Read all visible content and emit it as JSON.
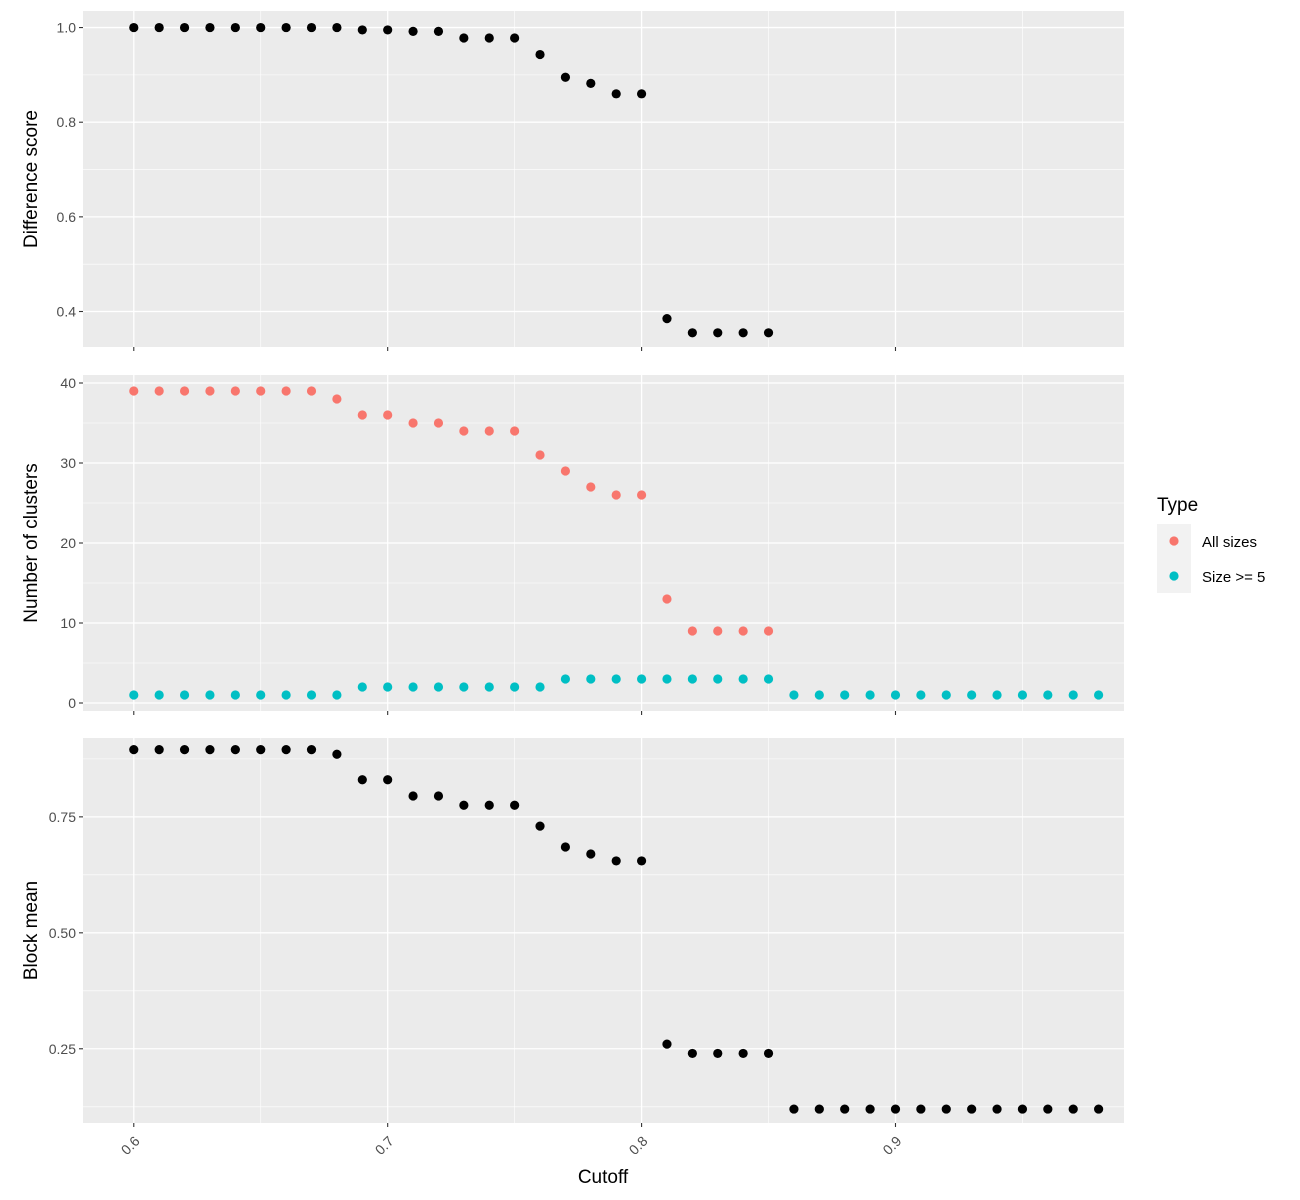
{
  "chart_data": [
    {
      "type": "scatter",
      "panel": "top",
      "ylabel": "Difference score",
      "xlim": [
        0.58,
        0.99
      ],
      "ylim": [
        0.325,
        1.035
      ],
      "y_ticks": [
        0.4,
        0.6,
        0.8,
        1.0
      ],
      "y_tick_labels": [
        "0.4",
        "0.6",
        "0.8",
        "1.0"
      ],
      "x_ticks": [
        0.6,
        0.7,
        0.8,
        0.9
      ],
      "grid": true,
      "series": [
        {
          "color": "#000000",
          "x": [
            0.6,
            0.61,
            0.62,
            0.63,
            0.64,
            0.65,
            0.66,
            0.67,
            0.68,
            0.69,
            0.7,
            0.71,
            0.72,
            0.73,
            0.74,
            0.75,
            0.76,
            0.77,
            0.78,
            0.79,
            0.8,
            0.81,
            0.82,
            0.83,
            0.84,
            0.85
          ],
          "y": [
            1.0,
            1.0,
            1.0,
            1.0,
            1.0,
            1.0,
            1.0,
            1.0,
            1.0,
            0.995,
            0.995,
            0.992,
            0.992,
            0.978,
            0.978,
            0.978,
            0.943,
            0.895,
            0.882,
            0.86,
            0.86,
            0.385,
            0.355,
            0.355,
            0.355,
            0.355
          ]
        }
      ]
    },
    {
      "type": "scatter",
      "panel": "middle",
      "ylabel": "Number of clusters",
      "xlim": [
        0.58,
        0.99
      ],
      "ylim": [
        -1,
        41
      ],
      "y_ticks": [
        0,
        10,
        20,
        30,
        40
      ],
      "y_tick_labels": [
        "0",
        "10",
        "20",
        "30",
        "40"
      ],
      "x_ticks": [
        0.6,
        0.7,
        0.8,
        0.9
      ],
      "grid": true,
      "series": [
        {
          "name": "All sizes",
          "color": "#F8766D",
          "x": [
            0.6,
            0.61,
            0.62,
            0.63,
            0.64,
            0.65,
            0.66,
            0.67,
            0.68,
            0.69,
            0.7,
            0.71,
            0.72,
            0.73,
            0.74,
            0.75,
            0.76,
            0.77,
            0.78,
            0.79,
            0.8,
            0.81,
            0.82,
            0.83,
            0.84,
            0.85
          ],
          "y": [
            39,
            39,
            39,
            39,
            39,
            39,
            39,
            39,
            38,
            36,
            36,
            35,
            35,
            34,
            34,
            34,
            31,
            29,
            27,
            26,
            26,
            13,
            9,
            9,
            9,
            9
          ]
        },
        {
          "name": "Size >= 5",
          "color": "#00BFC4",
          "x": [
            0.6,
            0.61,
            0.62,
            0.63,
            0.64,
            0.65,
            0.66,
            0.67,
            0.68,
            0.69,
            0.7,
            0.71,
            0.72,
            0.73,
            0.74,
            0.75,
            0.76,
            0.77,
            0.78,
            0.79,
            0.8,
            0.81,
            0.82,
            0.83,
            0.84,
            0.85,
            0.86,
            0.87,
            0.88,
            0.89,
            0.9,
            0.91,
            0.92,
            0.93,
            0.94,
            0.95,
            0.96,
            0.97,
            0.98
          ],
          "y": [
            1,
            1,
            1,
            1,
            1,
            1,
            1,
            1,
            1,
            2,
            2,
            2,
            2,
            2,
            2,
            2,
            2,
            3,
            3,
            3,
            3,
            3,
            3,
            3,
            3,
            3,
            1,
            1,
            1,
            1,
            1,
            1,
            1,
            1,
            1,
            1,
            1,
            1,
            1
          ]
        }
      ]
    },
    {
      "type": "scatter",
      "panel": "bottom",
      "ylabel": "Block mean",
      "xlabel": "Cutoff",
      "xlim": [
        0.58,
        0.99
      ],
      "ylim": [
        0.09,
        0.92
      ],
      "y_ticks": [
        0.25,
        0.5,
        0.75
      ],
      "y_tick_labels": [
        "0.25",
        "0.50",
        "0.75"
      ],
      "x_ticks": [
        0.6,
        0.7,
        0.8,
        0.9
      ],
      "x_tick_labels": [
        "0.6",
        "0.7",
        "0.8",
        "0.9"
      ],
      "grid": true,
      "series": [
        {
          "color": "#000000",
          "x": [
            0.6,
            0.61,
            0.62,
            0.63,
            0.64,
            0.65,
            0.66,
            0.67,
            0.68,
            0.69,
            0.7,
            0.71,
            0.72,
            0.73,
            0.74,
            0.75,
            0.76,
            0.77,
            0.78,
            0.79,
            0.8,
            0.81,
            0.82,
            0.83,
            0.84,
            0.85,
            0.86,
            0.87,
            0.88,
            0.89,
            0.9,
            0.91,
            0.92,
            0.93,
            0.94,
            0.95,
            0.96,
            0.97,
            0.98
          ],
          "y": [
            0.895,
            0.895,
            0.895,
            0.895,
            0.895,
            0.895,
            0.895,
            0.895,
            0.885,
            0.83,
            0.83,
            0.795,
            0.795,
            0.775,
            0.775,
            0.775,
            0.73,
            0.685,
            0.67,
            0.655,
            0.655,
            0.26,
            0.24,
            0.24,
            0.24,
            0.24,
            0.12,
            0.12,
            0.12,
            0.12,
            0.12,
            0.12,
            0.12,
            0.12,
            0.12,
            0.12,
            0.12,
            0.12,
            0.12
          ]
        }
      ]
    }
  ],
  "legend": {
    "title": "Type",
    "placement": "right",
    "items": [
      {
        "label": "All sizes",
        "color": "#F8766D"
      },
      {
        "label": "Size >= 5",
        "color": "#00BFC4"
      }
    ]
  },
  "colors": {
    "panel_background": "#EBEBEB",
    "grid": "#FFFFFF"
  }
}
